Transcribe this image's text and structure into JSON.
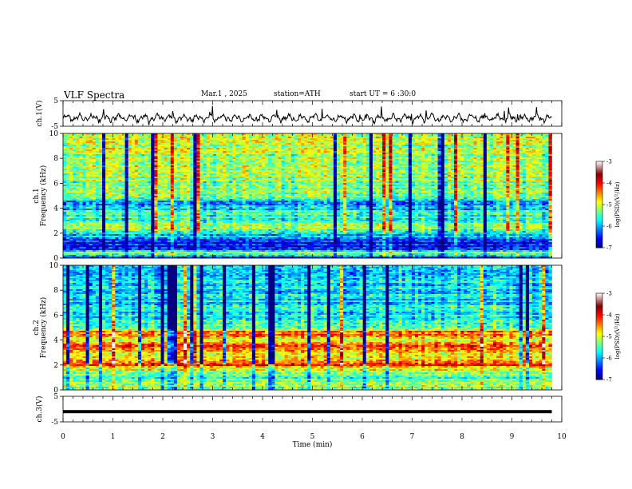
{
  "header": {
    "title": "VLF Spectra",
    "date": "Mar.1 , 2025",
    "station": "station=ATH",
    "start": "start UT = 6 :30:0"
  },
  "chart_data": [
    {
      "type": "line",
      "ylabel": "ch.1(V)",
      "ylim": [
        -5,
        5
      ],
      "yticks": [
        "5",
        "-5"
      ],
      "xlim": [
        0,
        10
      ],
      "data_end_min": 9.8,
      "baseline_v": -1.8,
      "color": "#000000"
    },
    {
      "type": "heatmap",
      "ylabel": "ch.1",
      "ylabel2": "Frequency (kHz)",
      "ylim": [
        0,
        10
      ],
      "yticks": [
        "0",
        "2",
        "4",
        "6",
        "8",
        "10"
      ],
      "xlim": [
        0,
        10
      ],
      "data_end_min": 9.8,
      "colorbar": {
        "label": "log(PSD)(V²/Hz)",
        "range": [
          -7,
          -3
        ],
        "ticks": [
          "-3",
          "-4",
          "-5",
          "-6",
          "-7"
        ]
      },
      "band_profile": [
        {
          "f": 0.0,
          "v": -6.6
        },
        {
          "f": 0.4,
          "v": -5.0
        },
        {
          "f": 0.8,
          "v": -6.7
        },
        {
          "f": 1.2,
          "v": -6.5
        },
        {
          "f": 1.6,
          "v": -6.3
        },
        {
          "f": 2.0,
          "v": -5.6
        },
        {
          "f": 2.4,
          "v": -5.1
        },
        {
          "f": 2.8,
          "v": -5.2
        },
        {
          "f": 3.2,
          "v": -5.7
        },
        {
          "f": 3.6,
          "v": -5.5
        },
        {
          "f": 4.0,
          "v": -6.0
        },
        {
          "f": 4.5,
          "v": -6.2
        },
        {
          "f": 5.0,
          "v": -5.4
        },
        {
          "f": 6.0,
          "v": -5.3
        },
        {
          "f": 7.0,
          "v": -5.2
        },
        {
          "f": 8.0,
          "v": -5.2
        },
        {
          "f": 9.0,
          "v": -5.1
        },
        {
          "f": 10.0,
          "v": -5.0
        }
      ]
    },
    {
      "type": "heatmap",
      "ylabel": "ch.2",
      "ylabel2": "Frequency (kHz)",
      "ylim": [
        0,
        10
      ],
      "yticks": [
        "0",
        "2",
        "4",
        "6",
        "8",
        "10"
      ],
      "xlim": [
        0,
        10
      ],
      "data_end_min": 9.8,
      "colorbar": {
        "label": "log(PSD)(V²/Hz)",
        "range": [
          -7,
          -3
        ],
        "ticks": [
          "-3",
          "-4",
          "-5",
          "-6",
          "-7"
        ]
      },
      "band_profile": [
        {
          "f": 0.0,
          "v": -5.3
        },
        {
          "f": 0.5,
          "v": -5.1
        },
        {
          "f": 1.0,
          "v": -5.6
        },
        {
          "f": 1.5,
          "v": -5.2
        },
        {
          "f": 2.0,
          "v": -4.2
        },
        {
          "f": 2.5,
          "v": -4.9
        },
        {
          "f": 3.0,
          "v": -5.0
        },
        {
          "f": 3.5,
          "v": -4.1
        },
        {
          "f": 4.0,
          "v": -5.1
        },
        {
          "f": 4.6,
          "v": -4.3
        },
        {
          "f": 5.0,
          "v": -5.5
        },
        {
          "f": 6.0,
          "v": -5.7
        },
        {
          "f": 7.0,
          "v": -5.8
        },
        {
          "f": 8.0,
          "v": -5.8
        },
        {
          "f": 9.0,
          "v": -5.8
        },
        {
          "f": 10.0,
          "v": -5.8
        }
      ]
    },
    {
      "type": "line",
      "ylabel": "ch.3(V)",
      "ylim": [
        -5,
        5
      ],
      "yticks": [
        "5",
        "-5"
      ],
      "xlim": [
        0,
        10
      ],
      "data_end_min": 9.8,
      "constant_v": -1.0,
      "xlabel": "Time (min)",
      "xticks": [
        "0",
        "1",
        "2",
        "3",
        "4",
        "5",
        "6",
        "7",
        "8",
        "9",
        "10"
      ],
      "color": "#000000"
    }
  ]
}
